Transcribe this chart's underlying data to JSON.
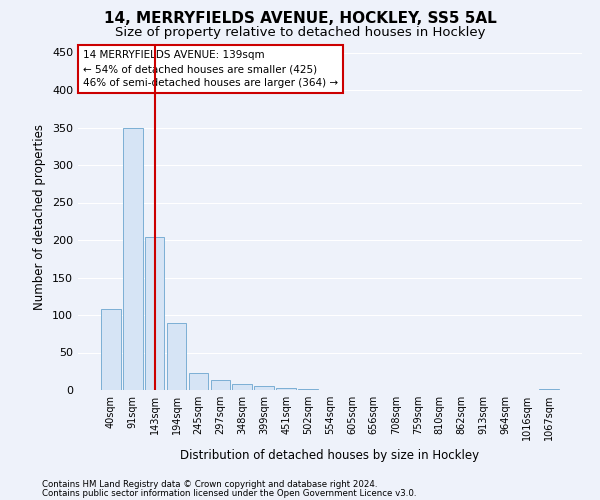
{
  "title1": "14, MERRYFIELDS AVENUE, HOCKLEY, SS5 5AL",
  "title2": "Size of property relative to detached houses in Hockley",
  "xlabel": "Distribution of detached houses by size in Hockley",
  "ylabel": "Number of detached properties",
  "bar_labels": [
    "40sqm",
    "91sqm",
    "143sqm",
    "194sqm",
    "245sqm",
    "297sqm",
    "348sqm",
    "399sqm",
    "451sqm",
    "502sqm",
    "554sqm",
    "605sqm",
    "656sqm",
    "708sqm",
    "759sqm",
    "810sqm",
    "862sqm",
    "913sqm",
    "964sqm",
    "1016sqm",
    "1067sqm"
  ],
  "bar_values": [
    108,
    349,
    204,
    89,
    23,
    14,
    8,
    6,
    3,
    1,
    0,
    0,
    0,
    0,
    0,
    0,
    0,
    0,
    0,
    0,
    2
  ],
  "bar_color": "#d6e4f5",
  "bar_edge_color": "#7bafd4",
  "vline_x": 2,
  "vline_color": "#cc0000",
  "annotation_text": "14 MERRYFIELDS AVENUE: 139sqm\n← 54% of detached houses are smaller (425)\n46% of semi-detached houses are larger (364) →",
  "annotation_box_color": "#ffffff",
  "annotation_box_edge": "#cc0000",
  "ylim": [
    0,
    460
  ],
  "yticks": [
    0,
    50,
    100,
    150,
    200,
    250,
    300,
    350,
    400,
    450
  ],
  "footnote1": "Contains HM Land Registry data © Crown copyright and database right 2024.",
  "footnote2": "Contains public sector information licensed under the Open Government Licence v3.0.",
  "bg_color": "#eef2fa",
  "grid_color": "#ffffff",
  "title1_fontsize": 11,
  "title2_fontsize": 9.5
}
